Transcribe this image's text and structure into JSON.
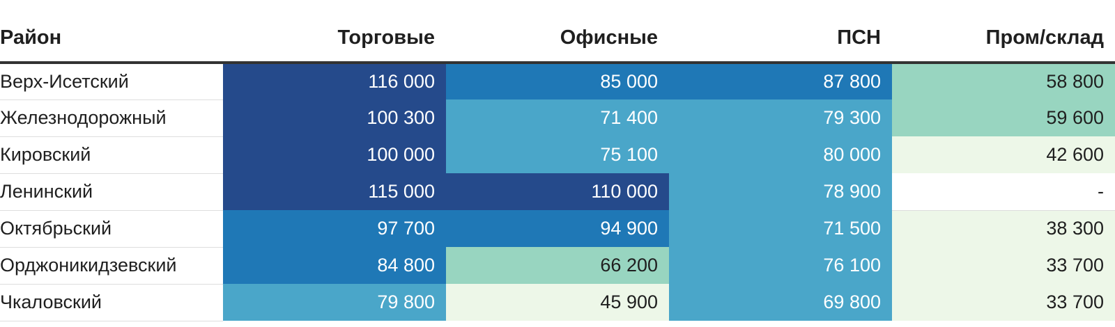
{
  "chart_data": {
    "type": "table",
    "columns": [
      "Район",
      "Торговые",
      "Офисные",
      "ПСН",
      "Пром/склад"
    ],
    "rows": [
      {
        "district": "Верх-Исетский",
        "values": [
          "116 000",
          "85 000",
          "87 800",
          "58 800"
        ]
      },
      {
        "district": "Железнодорожный",
        "values": [
          "100 300",
          "71 400",
          "79 300",
          "59 600"
        ]
      },
      {
        "district": "Кировский",
        "values": [
          "100 000",
          "75 100",
          "80 000",
          "42 600"
        ]
      },
      {
        "district": "Ленинский",
        "values": [
          "115 000",
          "110 000",
          "78 900",
          "-"
        ]
      },
      {
        "district": "Октябрьский",
        "values": [
          "97 700",
          "94 900",
          "71 500",
          "38 300"
        ]
      },
      {
        "district": "Орджоникидзевский",
        "values": [
          "84 800",
          "66 200",
          "76 100",
          "33 700"
        ]
      },
      {
        "district": "Чкаловский",
        "values": [
          "79 800",
          "45 900",
          "69 800",
          "33 700"
        ]
      }
    ],
    "color_scale": {
      "very_high": "#254a8b",
      "high": "#1f78b6",
      "medium": "#4aa6c9",
      "low": "#98d5c0",
      "very_low": "#edf7e8",
      "none": "#ffffff"
    }
  }
}
